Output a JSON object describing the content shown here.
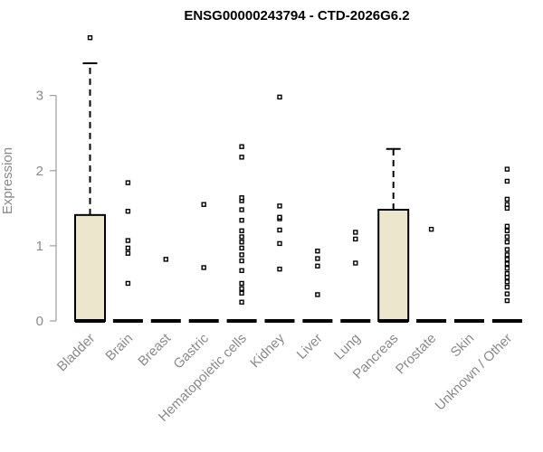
{
  "chart_data": {
    "type": "boxplot",
    "title": "ENSG00000243794 - CTD-2026G6.2",
    "xlabel": "",
    "ylabel": "Expression",
    "ylim": [
      0,
      3.8
    ],
    "yticks": [
      0,
      1,
      2,
      3
    ],
    "box_fill": "#ece6cc",
    "grid": false,
    "categories": [
      "Bladder",
      "Brain",
      "Breast",
      "Gastric",
      "Hematopoietic cells",
      "Kidney",
      "Liver",
      "Lung",
      "Pancreas",
      "Prostate",
      "Skin",
      "Unknown / Other"
    ],
    "boxes": [
      {
        "name": "Bladder",
        "min": 0,
        "q1": 0,
        "median": 0,
        "q3": 1.41,
        "max": 3.43,
        "outliers": [
          3.77
        ]
      },
      {
        "name": "Brain",
        "min": 0,
        "q1": 0,
        "median": 0,
        "q3": 0,
        "max": 0,
        "outliers": [
          0.5,
          0.9,
          0.97,
          1.07,
          1.46,
          1.84
        ]
      },
      {
        "name": "Breast",
        "min": 0,
        "q1": 0,
        "median": 0,
        "q3": 0,
        "max": 0,
        "outliers": [
          0.82
        ]
      },
      {
        "name": "Gastric",
        "min": 0,
        "q1": 0,
        "median": 0,
        "q3": 0,
        "max": 0,
        "outliers": [
          0.71,
          1.55
        ]
      },
      {
        "name": "Hematopoietic cells",
        "min": 0,
        "q1": 0,
        "median": 0,
        "q3": 0,
        "max": 0,
        "outliers": [
          0.25,
          0.37,
          0.43,
          0.5,
          0.67,
          0.8,
          0.88,
          0.97,
          1.05,
          1.12,
          1.2,
          1.34,
          1.48,
          1.6,
          1.64,
          2.18,
          2.32
        ]
      },
      {
        "name": "Kidney",
        "min": 0,
        "q1": 0,
        "median": 0,
        "q3": 0,
        "max": 0,
        "outliers": [
          0.69,
          1.03,
          1.21,
          1.36,
          1.38,
          1.53,
          2.98
        ]
      },
      {
        "name": "Liver",
        "min": 0,
        "q1": 0,
        "median": 0,
        "q3": 0,
        "max": 0,
        "outliers": [
          0.35,
          0.73,
          0.83,
          0.93
        ]
      },
      {
        "name": "Lung",
        "min": 0,
        "q1": 0,
        "median": 0,
        "q3": 0,
        "max": 0,
        "outliers": [
          0.77,
          1.09,
          1.18
        ]
      },
      {
        "name": "Pancreas",
        "min": 0,
        "q1": 0,
        "median": 0,
        "q3": 1.48,
        "max": 2.29,
        "outliers": []
      },
      {
        "name": "Prostate",
        "min": 0,
        "q1": 0,
        "median": 0,
        "q3": 0,
        "max": 0,
        "outliers": [
          1.22
        ]
      },
      {
        "name": "Skin",
        "min": 0,
        "q1": 0,
        "median": 0,
        "q3": 0,
        "max": 0,
        "outliers": []
      },
      {
        "name": "Unknown / Other",
        "min": 0,
        "q1": 0,
        "median": 0,
        "q3": 0,
        "max": 0,
        "outliers": [
          0.27,
          0.36,
          0.45,
          0.52,
          0.58,
          0.63,
          0.7,
          0.76,
          0.82,
          0.88,
          0.95,
          1.05,
          1.12,
          1.2,
          1.26,
          1.5,
          1.55,
          1.62,
          1.86,
          2.02
        ]
      }
    ]
  }
}
